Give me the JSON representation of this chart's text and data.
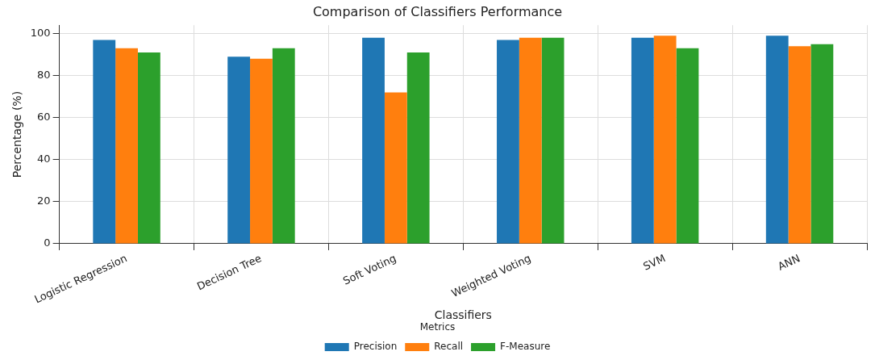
{
  "chart_data": {
    "type": "bar",
    "title": "Comparison of Classifiers Performance",
    "xlabel": "Classifiers",
    "ylabel": "Percentage (%)",
    "legend_title": "Metrics",
    "categories": [
      "Logistic Regression",
      "Decision Tree",
      "Soft Voting",
      "Weighted Voting",
      "SVM",
      "ANN"
    ],
    "series": [
      {
        "name": "Precision",
        "color": "#1f77b4",
        "values": [
          97,
          89,
          98,
          97,
          98,
          99
        ]
      },
      {
        "name": "Recall",
        "color": "#ff7f0e",
        "values": [
          93,
          88,
          72,
          98,
          99,
          94
        ]
      },
      {
        "name": "F-Measure",
        "color": "#2ca02c",
        "values": [
          91,
          93,
          91,
          98,
          93,
          95
        ]
      }
    ],
    "ylim": [
      0,
      104
    ],
    "yticks": [
      0,
      20,
      40,
      60,
      80,
      100
    ],
    "grid": true,
    "legend": "bottom"
  }
}
